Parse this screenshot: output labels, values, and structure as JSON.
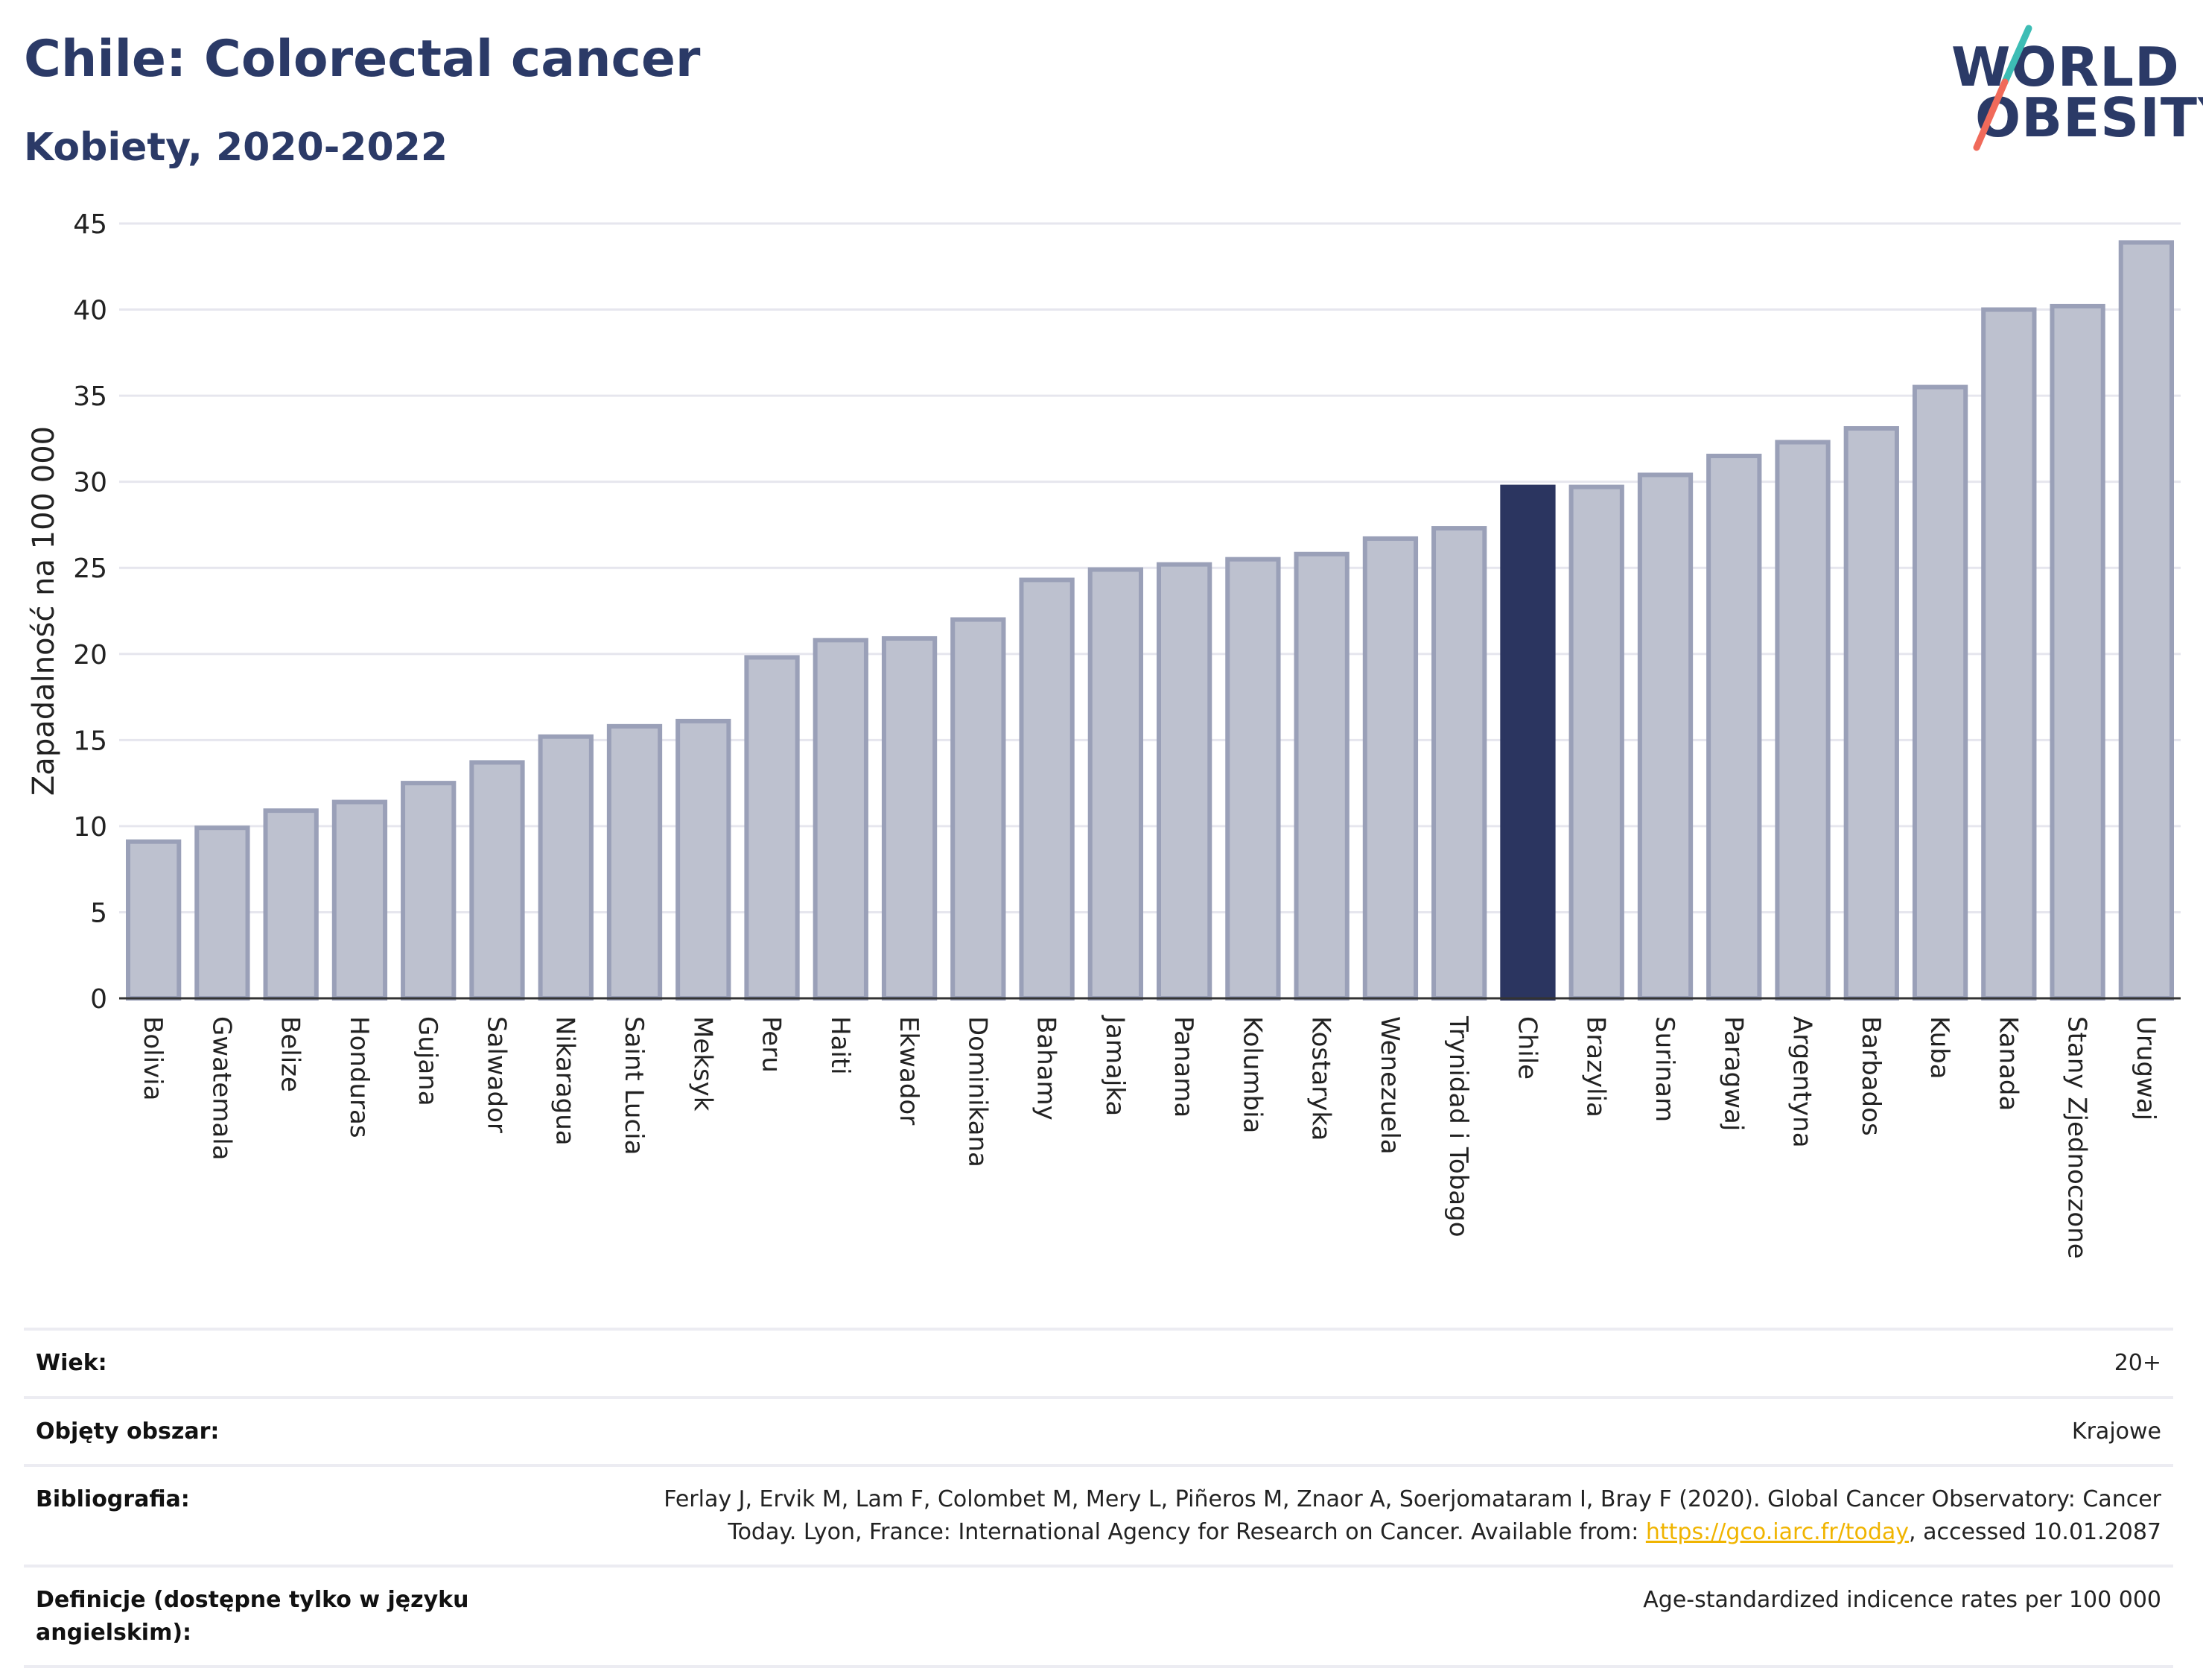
{
  "header": {
    "title": "Chile: Colorectal cancer",
    "subtitle": "Kobiety, 2020-2022"
  },
  "logo": {
    "line1": "WORLD",
    "line2": "OBESITY",
    "colors": {
      "text": "#2b3a67",
      "slash_top": "#3dbdb5",
      "slash_bottom": "#f06a5a"
    }
  },
  "chart_data": {
    "type": "bar",
    "title": "Chile: Colorectal cancer",
    "subtitle": "Kobiety, 2020-2022",
    "xlabel": "",
    "ylabel": "Zapadalność na 100 000",
    "ylim": [
      0,
      45
    ],
    "yticks": [
      0,
      5,
      10,
      15,
      20,
      25,
      30,
      35,
      40,
      45
    ],
    "grid": true,
    "legend": "none",
    "highlight": "Chile",
    "colors": {
      "bar": "#bdc1cf",
      "bar_edge": "#9aa0b8",
      "highlight": "#2b3560",
      "grid": "#e6e6ee",
      "axis": "#333333"
    },
    "categories": [
      "Bolivia",
      "Gwatemala",
      "Belize",
      "Honduras",
      "Gujana",
      "Salwador",
      "Nikaragua",
      "Saint Lucia",
      "Meksyk",
      "Peru",
      "Haiti",
      "Ekwador",
      "Dominikana",
      "Bahamy",
      "Jamajka",
      "Panama",
      "Kolumbia",
      "Kostaryka",
      "Wenezuela",
      "Trynidad i Tobago",
      "Chile",
      "Brazylia",
      "Surinam",
      "Paragwaj",
      "Argentyna",
      "Barbados",
      "Kuba",
      "Kanada",
      "Stany Zjednoczone",
      "Urugwaj"
    ],
    "values": [
      9.1,
      9.9,
      10.9,
      11.4,
      12.5,
      13.7,
      15.2,
      15.8,
      16.1,
      19.8,
      20.8,
      20.9,
      22.0,
      24.3,
      24.9,
      25.2,
      25.5,
      25.8,
      26.7,
      27.3,
      29.7,
      29.7,
      30.4,
      31.5,
      32.3,
      33.1,
      35.5,
      40.0,
      40.2,
      43.9
    ]
  },
  "meta": {
    "rows": [
      {
        "label": "Wiek:",
        "value": "20+"
      },
      {
        "label": "Objęty obszar:",
        "value": "Krajowe"
      },
      {
        "label": "Bibliografia:",
        "value_line1": "Ferlay J, Ervik M, Lam F, Colombet M, Mery L, Piñeros M, Znaor A, Soerjomataram I, Bray F (2020). Global Cancer Observatory: Cancer",
        "value_line2_pre": "Today. Lyon, France: International Agency for Research on Cancer. Available from: ",
        "link": "https://gco.iarc.fr/today",
        "value_line2_post": ", accessed 10.01.2087"
      },
      {
        "label": "Definicje (dostępne tylko w języku angielskim):",
        "value": "Age-standardized indicence rates per 100 000"
      }
    ]
  }
}
